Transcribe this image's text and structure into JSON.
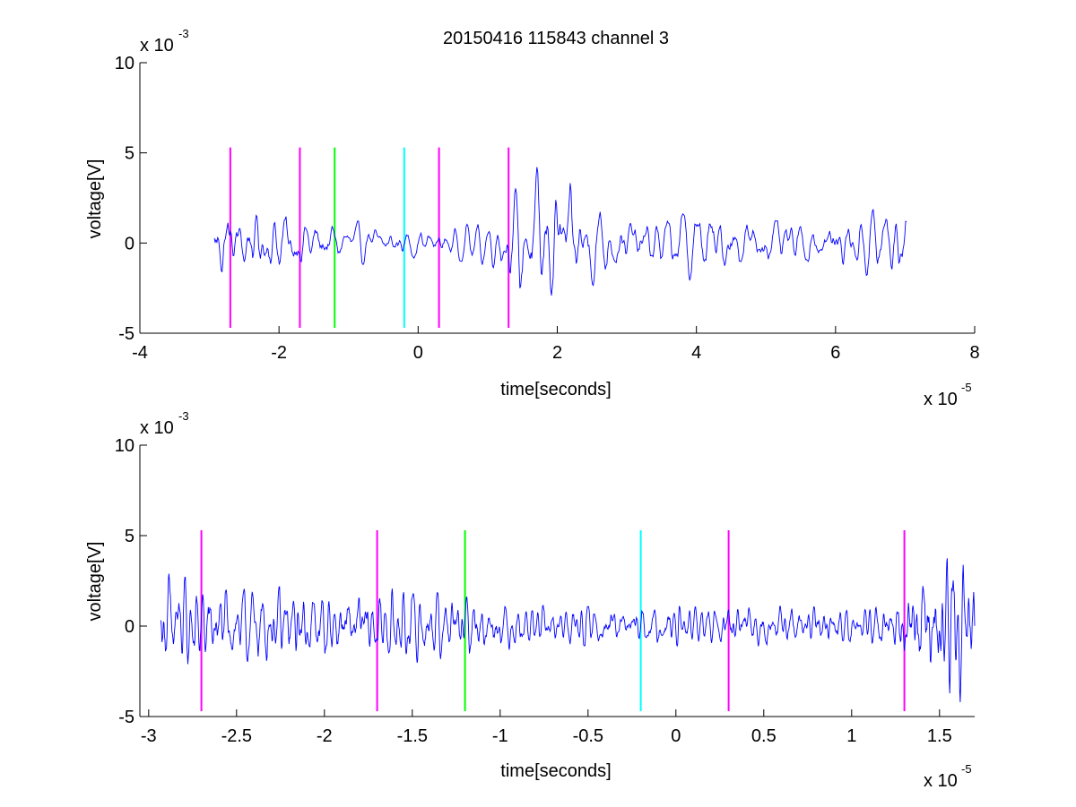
{
  "chart_data": [
    {
      "type": "line",
      "title": "20150416 115843 channel 3",
      "xlabel": "time[seconds]",
      "ylabel": "voltage[V]",
      "x_multiplier_label": "x 10",
      "x_multiplier_exponent": "-5",
      "y_multiplier_label": "x 10",
      "y_multiplier_exponent": "-3",
      "xlim": [
        -4,
        8
      ],
      "ylim": [
        -5,
        10
      ],
      "xticks": [
        -4,
        -2,
        0,
        2,
        4,
        6,
        8
      ],
      "xtick_labels": [
        "-4",
        "-2",
        "0",
        "2",
        "4",
        "6",
        "8"
      ],
      "yticks": [
        -5,
        0,
        5,
        10
      ],
      "ytick_labels": [
        "-5",
        "0",
        "5",
        "10"
      ],
      "series": [
        {
          "color": "#0000ff",
          "x_range": [
            -2.93,
            7.02
          ],
          "envelope": [
            [
              -2.93,
              2.5
            ],
            [
              -2.6,
              2.0
            ],
            [
              -2.0,
              1.8
            ],
            [
              -1.2,
              1.2
            ],
            [
              -0.5,
              0.9
            ],
            [
              0.5,
              0.8
            ],
            [
              1.1,
              1.2
            ],
            [
              1.3,
              2.2
            ],
            [
              1.6,
              3.5
            ],
            [
              1.8,
              3.8
            ],
            [
              2.2,
              3.0
            ],
            [
              2.8,
              1.6
            ],
            [
              3.5,
              1.4
            ],
            [
              4.0,
              2.0
            ],
            [
              4.5,
              1.5
            ],
            [
              5.5,
              1.1
            ],
            [
              6.3,
              1.5
            ],
            [
              6.7,
              2.3
            ],
            [
              7.02,
              1.9
            ]
          ]
        }
      ],
      "vertical_markers": [
        {
          "x": -2.7,
          "color": "#ff00ff",
          "y_range": [
            -4.7,
            5.3
          ]
        },
        {
          "x": -1.7,
          "color": "#ff00ff",
          "y_range": [
            -4.7,
            5.3
          ]
        },
        {
          "x": -1.2,
          "color": "#00ff00",
          "y_range": [
            -4.7,
            5.3
          ]
        },
        {
          "x": -0.2,
          "color": "#00ffff",
          "y_range": [
            -4.7,
            5.3
          ]
        },
        {
          "x": 0.3,
          "color": "#ff00ff",
          "y_range": [
            -4.7,
            5.3
          ]
        },
        {
          "x": 1.3,
          "color": "#ff00ff",
          "y_range": [
            -4.7,
            5.3
          ]
        }
      ]
    },
    {
      "type": "line",
      "title": "",
      "xlabel": "time[seconds]",
      "ylabel": "voltage[V]",
      "x_multiplier_label": "x 10",
      "x_multiplier_exponent": "-5",
      "y_multiplier_label": "x 10",
      "y_multiplier_exponent": "-3",
      "xlim": [
        -3.05,
        1.7
      ],
      "ylim": [
        -5,
        10
      ],
      "xticks": [
        -3,
        -2.5,
        -2,
        -1.5,
        -1,
        -0.5,
        0,
        0.5,
        1,
        1.5
      ],
      "xtick_labels": [
        "-3",
        "-2.5",
        "-2",
        "-1.5",
        "-1",
        "-0.5",
        "0",
        "0.5",
        "1",
        "1.5"
      ],
      "yticks": [
        -5,
        0,
        5,
        10
      ],
      "ytick_labels": [
        "-5",
        "0",
        "5",
        "10"
      ],
      "series": [
        {
          "color": "#0000ff",
          "x_range": [
            -2.93,
            1.7
          ],
          "envelope": [
            [
              -2.93,
              2.6
            ],
            [
              -2.6,
              2.0
            ],
            [
              -2.0,
              1.8
            ],
            [
              -1.5,
              1.8
            ],
            [
              -1.2,
              1.4
            ],
            [
              -0.8,
              1.0
            ],
            [
              -0.3,
              0.9
            ],
            [
              0.3,
              1.0
            ],
            [
              0.9,
              0.9
            ],
            [
              1.2,
              1.1
            ],
            [
              1.35,
              2.5
            ],
            [
              1.5,
              3.3
            ],
            [
              1.6,
              3.8
            ],
            [
              1.7,
              3.0
            ]
          ]
        }
      ],
      "vertical_markers": [
        {
          "x": -2.7,
          "color": "#ff00ff",
          "y_range": [
            -4.7,
            5.3
          ]
        },
        {
          "x": -1.7,
          "color": "#ff00ff",
          "y_range": [
            -4.7,
            5.3
          ]
        },
        {
          "x": -1.2,
          "color": "#00ff00",
          "y_range": [
            -4.7,
            5.3
          ]
        },
        {
          "x": -0.2,
          "color": "#00ffff",
          "y_range": [
            -4.7,
            5.3
          ]
        },
        {
          "x": 0.3,
          "color": "#ff00ff",
          "y_range": [
            -4.7,
            5.3
          ]
        },
        {
          "x": 1.3,
          "color": "#ff00ff",
          "y_range": [
            -4.7,
            5.3
          ]
        }
      ]
    }
  ]
}
